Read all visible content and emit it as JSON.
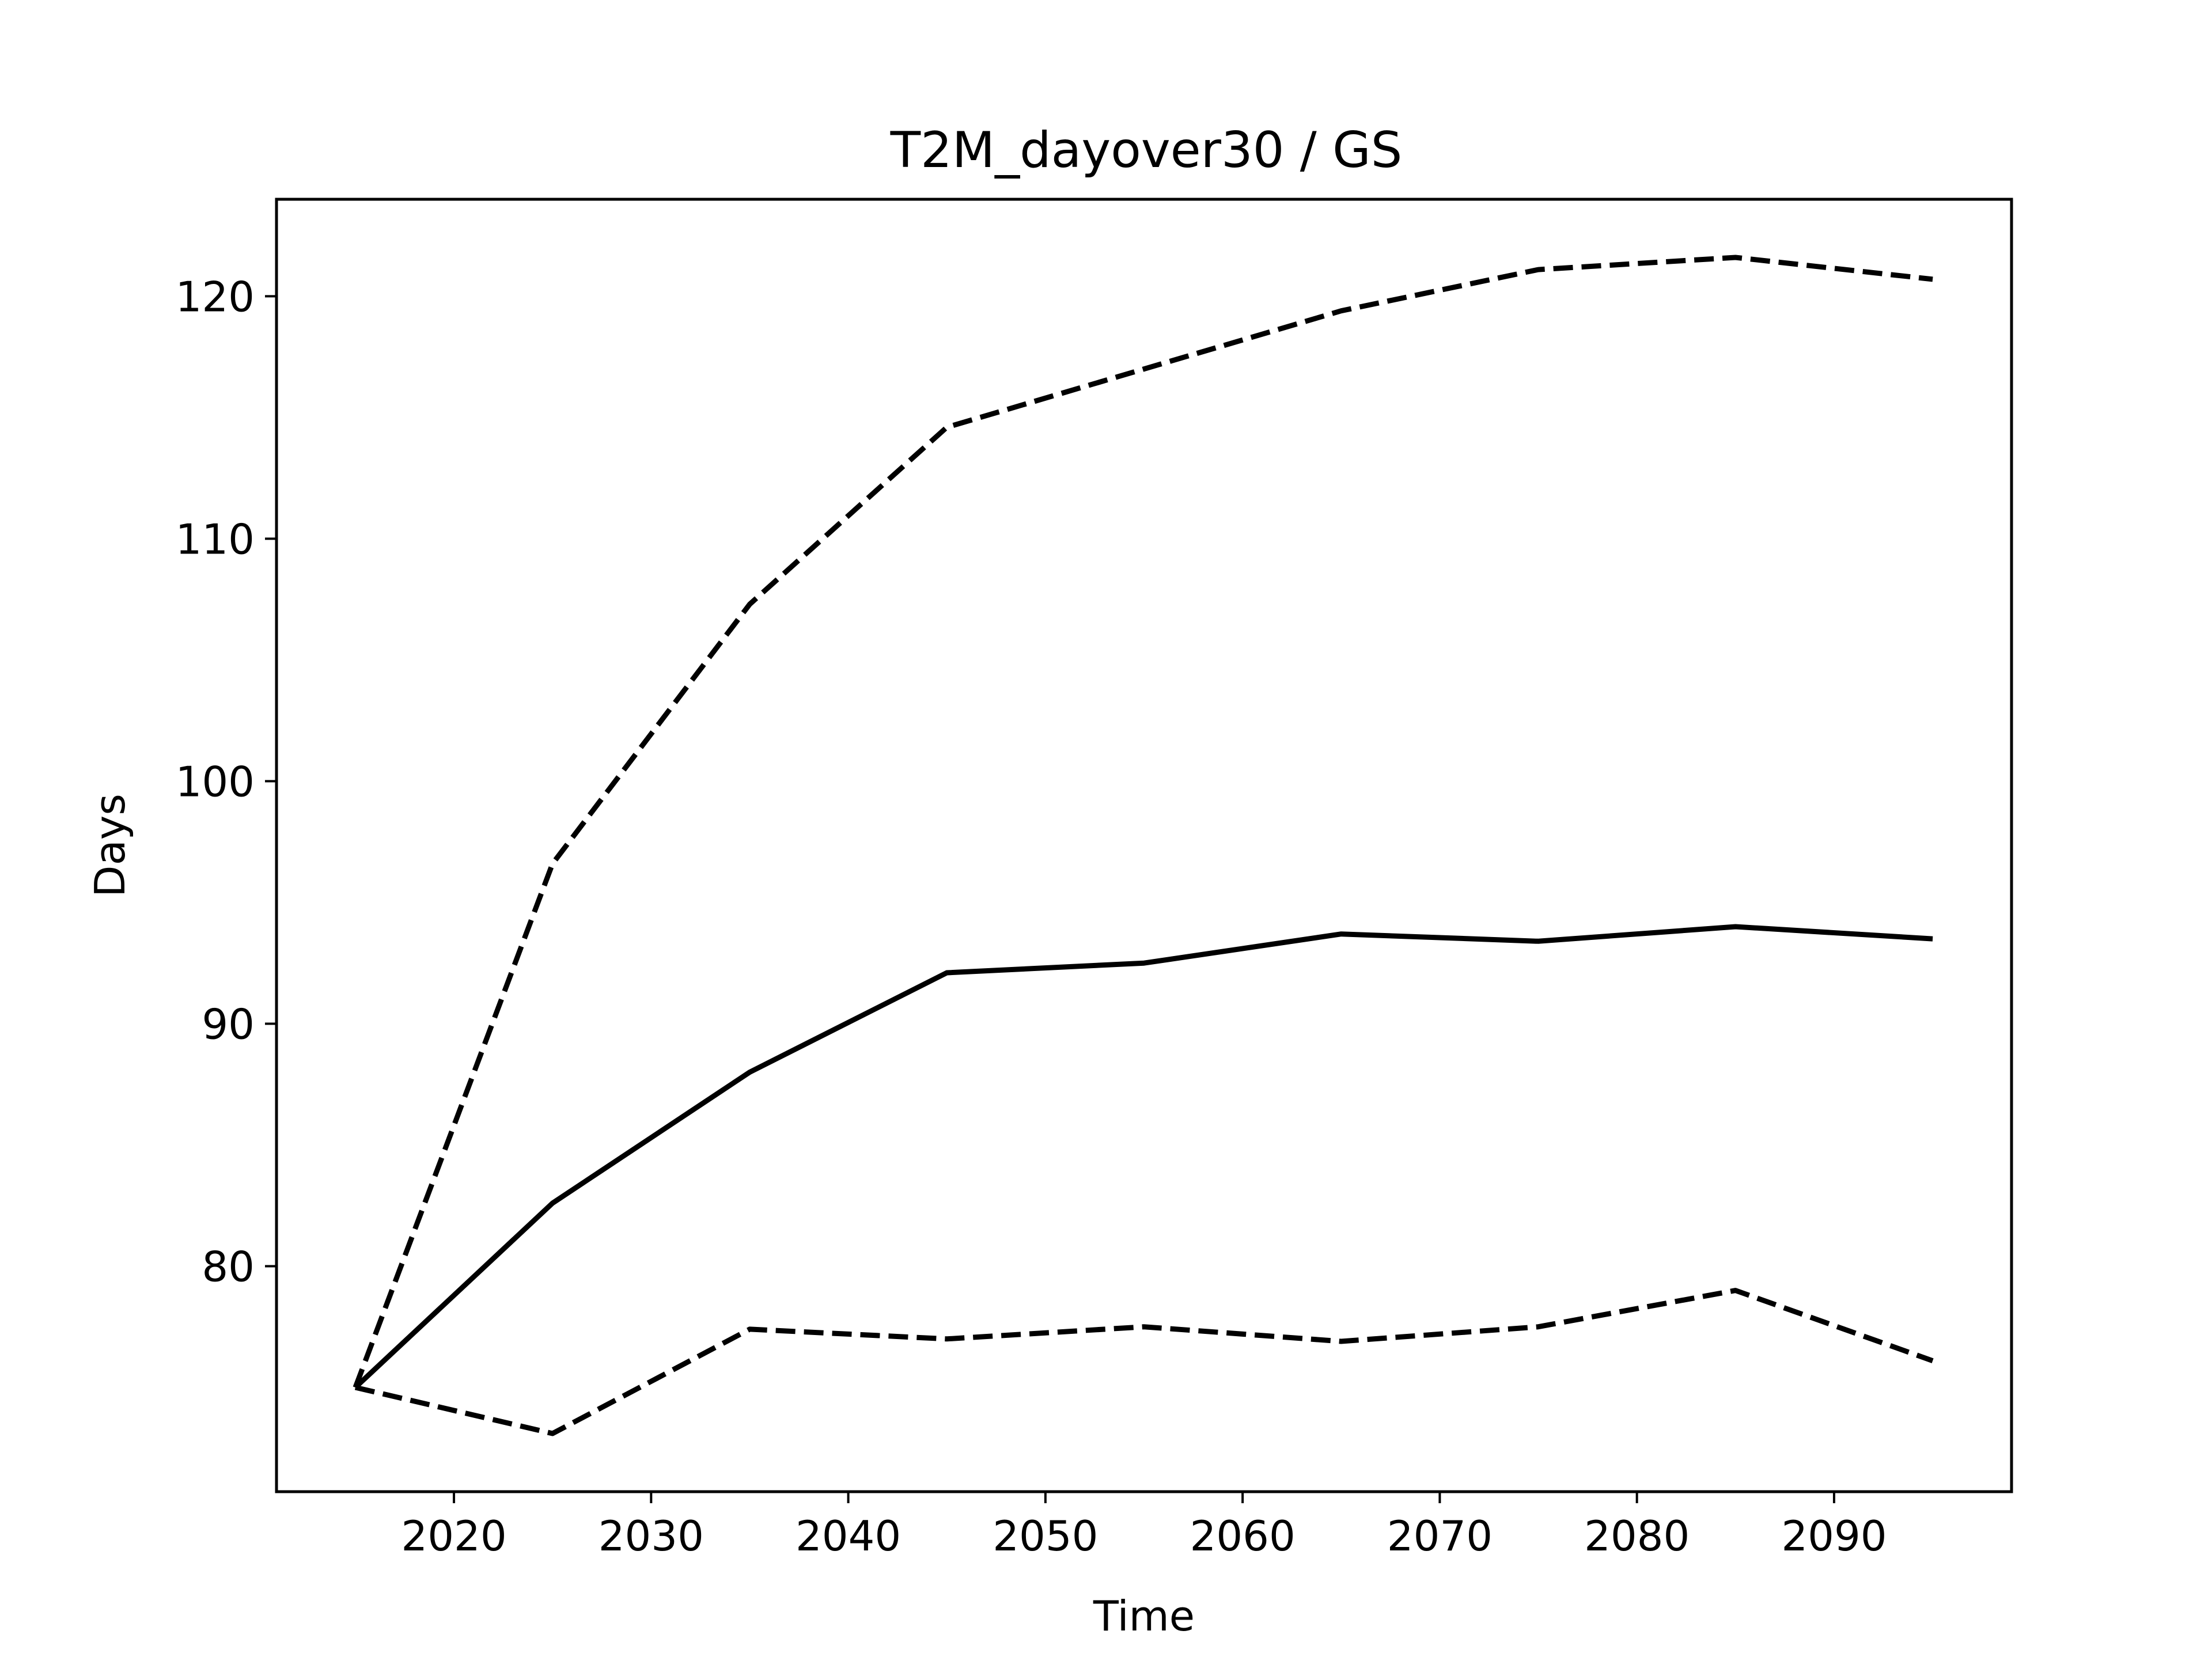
{
  "chart_data": {
    "type": "line",
    "title": "T2M_dayover30 / GS",
    "xlabel": "Time",
    "ylabel": "Days",
    "xlim": [
      2011,
      2099
    ],
    "ylim": [
      70.7,
      124
    ],
    "x_ticks": [
      2020,
      2030,
      2040,
      2050,
      2060,
      2070,
      2080,
      2090
    ],
    "y_ticks": [
      80,
      90,
      100,
      110,
      120
    ],
    "grid": false,
    "legend": "none",
    "x": [
      2015,
      2025,
      2035,
      2045,
      2055,
      2065,
      2075,
      2085,
      2095
    ],
    "series": [
      {
        "style": "solid",
        "color": "#000000",
        "values": [
          75.0,
          82.6,
          88.0,
          92.1,
          92.5,
          93.7,
          93.4,
          94.0,
          93.5
        ]
      },
      {
        "style": "dashed",
        "color": "#000000",
        "values": [
          75.0,
          96.6,
          107.3,
          114.6,
          117.0,
          119.4,
          121.1,
          121.6,
          120.7
        ]
      },
      {
        "style": "dashed",
        "color": "#000000",
        "values": [
          75.0,
          73.1,
          77.4,
          77.0,
          77.5,
          76.9,
          77.5,
          79.0,
          76.1
        ]
      }
    ]
  }
}
